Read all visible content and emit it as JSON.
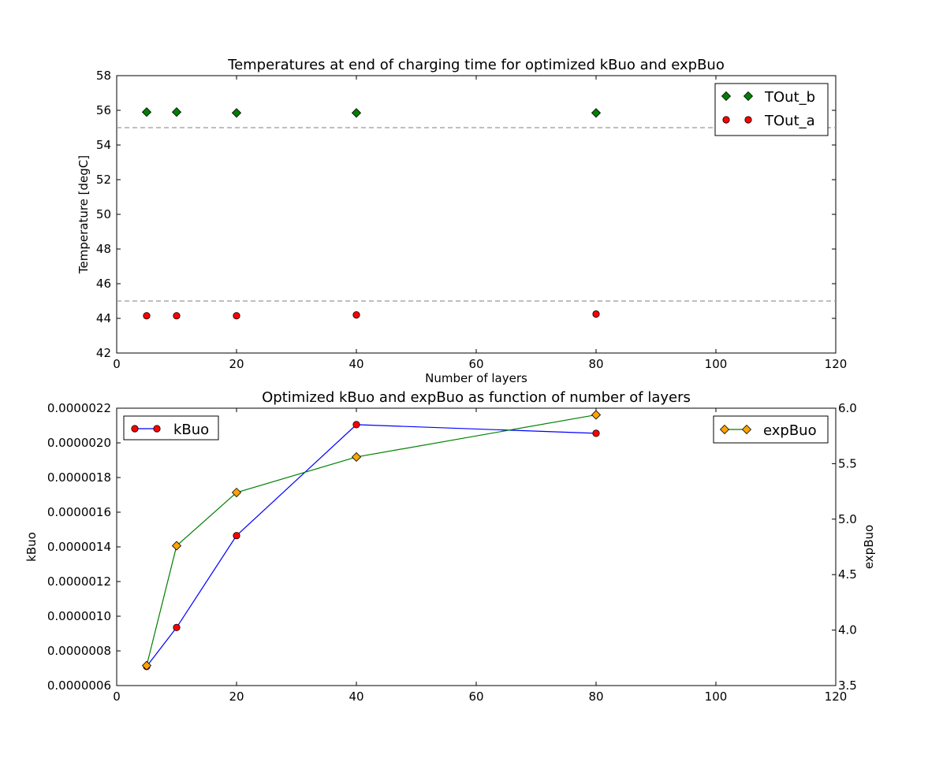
{
  "chart_data": [
    {
      "type": "scatter",
      "title": "Temperatures at end of charging time for optimized kBuo and expBuo",
      "xlabel": "Number of layers",
      "ylabel": "Temperature [degC]",
      "xlim": [
        0,
        120
      ],
      "ylim": [
        42,
        58
      ],
      "xticks": [
        "0",
        "20",
        "40",
        "60",
        "80",
        "100",
        "120"
      ],
      "yticks": [
        "42",
        "44",
        "46",
        "48",
        "50",
        "52",
        "54",
        "56",
        "58"
      ],
      "legend_position": "top-right",
      "grid": false,
      "reference_lines": [
        {
          "y": 55,
          "style": "dashed",
          "color": "#999999"
        },
        {
          "y": 45,
          "style": "dashed",
          "color": "#999999"
        }
      ],
      "series": [
        {
          "name": "TOut_b",
          "marker": "diamond",
          "color": "#008000",
          "x": [
            5,
            10,
            20,
            40,
            80
          ],
          "y": [
            55.9,
            55.9,
            55.85,
            55.85,
            55.85
          ]
        },
        {
          "name": "TOut_a",
          "marker": "circle",
          "color": "#ff0000",
          "x": [
            5,
            10,
            20,
            40,
            80
          ],
          "y": [
            44.15,
            44.15,
            44.15,
            44.2,
            44.25
          ]
        }
      ]
    },
    {
      "type": "line",
      "title": "Optimized kBuo and expBuo as function of number of layers",
      "xlabel": "",
      "ylabel": "kBuo",
      "ylabel_right": "expBuo",
      "xlim": [
        0,
        120
      ],
      "ylim": [
        6e-07,
        2.2e-06
      ],
      "ylim_right": [
        3.5,
        6.0
      ],
      "xticks": [
        "0",
        "20",
        "40",
        "60",
        "80",
        "100",
        "120"
      ],
      "yticks": [
        "0.0000006",
        "0.0000008",
        "0.0000010",
        "0.0000012",
        "0.0000014",
        "0.0000016",
        "0.0000018",
        "0.0000020",
        "0.0000022"
      ],
      "yticks_right": [
        "3.5",
        "4.0",
        "4.5",
        "5.0",
        "5.5",
        "6.0"
      ],
      "grid": false,
      "series": [
        {
          "name": "kBuo",
          "axis": "left",
          "marker": "circle",
          "line_color": "#0000ff",
          "marker_color": "#ff0000",
          "legend_position": "top-left",
          "x": [
            5,
            10,
            20,
            40,
            80
          ],
          "y": [
            7.1e-07,
            9.35e-07,
            1.465e-06,
            2.105e-06,
            2.055e-06
          ]
        },
        {
          "name": "expBuo",
          "axis": "right",
          "marker": "diamond",
          "line_color": "#008000",
          "marker_color": "#ffa500",
          "legend_position": "top-right",
          "x": [
            5,
            10,
            20,
            40,
            80
          ],
          "y": [
            3.68,
            4.76,
            5.24,
            5.56,
            5.94
          ]
        }
      ]
    }
  ]
}
